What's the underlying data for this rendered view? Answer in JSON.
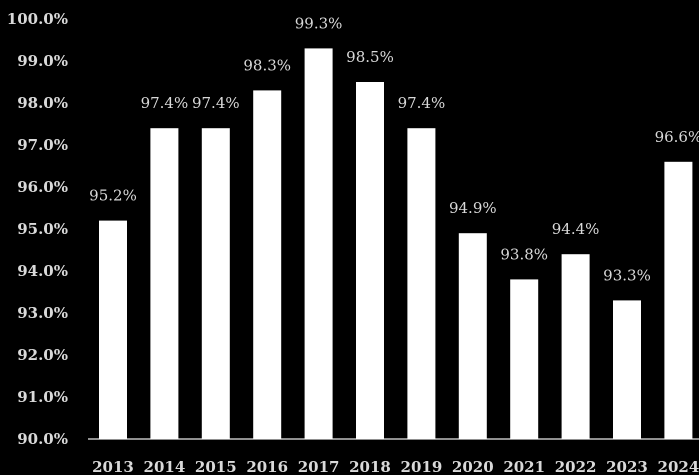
{
  "chart_data": {
    "type": "bar",
    "title": "",
    "xlabel": "",
    "ylabel": "",
    "categories": [
      "2013",
      "2014",
      "2015",
      "2016",
      "2017",
      "2018",
      "2019",
      "2020",
      "2021",
      "2022",
      "2023",
      "2024"
    ],
    "values": [
      95.2,
      97.4,
      97.4,
      98.3,
      99.3,
      98.5,
      97.4,
      94.9,
      93.8,
      94.4,
      93.3,
      96.6
    ],
    "value_labels": [
      "95.2%",
      "97.4%",
      "97.4%",
      "98.3%",
      "99.3%",
      "98.5%",
      "97.4%",
      "94.9%",
      "93.8%",
      "94.4%",
      "93.3%",
      "96.6%"
    ],
    "ylim": [
      90,
      100
    ],
    "y_ticks": [
      90,
      91,
      92,
      93,
      94,
      95,
      96,
      97,
      98,
      99,
      100
    ],
    "y_tick_labels": [
      "90.0%",
      "91.0%",
      "92.0%",
      "93.0%",
      "94.0%",
      "95.0%",
      "96.0%",
      "97.0%",
      "98.0%",
      "99.0%",
      "100.0%"
    ],
    "grid": false,
    "legend": "none",
    "colors": {
      "background": "#000000",
      "bar": "#ffffff",
      "text": "#d9d9d9",
      "axis": "#bfbfbf"
    }
  }
}
